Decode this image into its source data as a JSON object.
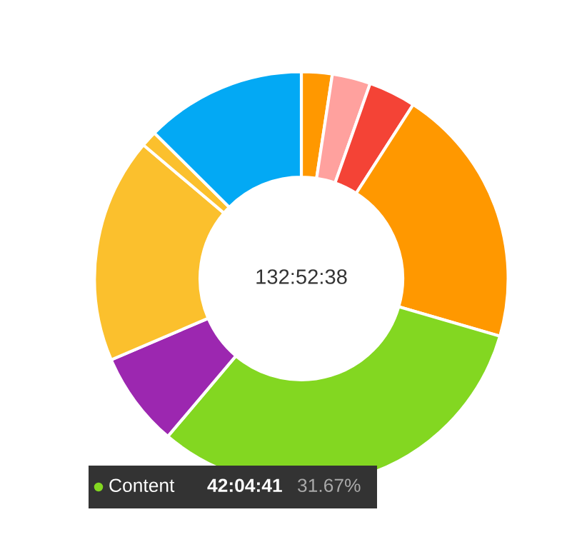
{
  "chart_data": {
    "type": "donut",
    "categories": [
      null,
      null,
      null,
      null,
      "Content",
      null,
      null,
      null,
      null
    ],
    "values": [
      2.4,
      3.0,
      3.7,
      20.4,
      31.67,
      7.4,
      17.6,
      1.25,
      12.58
    ],
    "colors": [
      "#ff9800",
      "#ffa19e",
      "#f44336",
      "#ff9800",
      "#83d721",
      "#9c27b0",
      "#fbc02d",
      "#fbc02d",
      "#03a9f4"
    ],
    "value_labels": [
      null,
      null,
      null,
      null,
      "31.67%",
      null,
      null,
      null,
      null
    ],
    "annotations": [
      "132:52:38",
      "42:04:41"
    ]
  }
}
